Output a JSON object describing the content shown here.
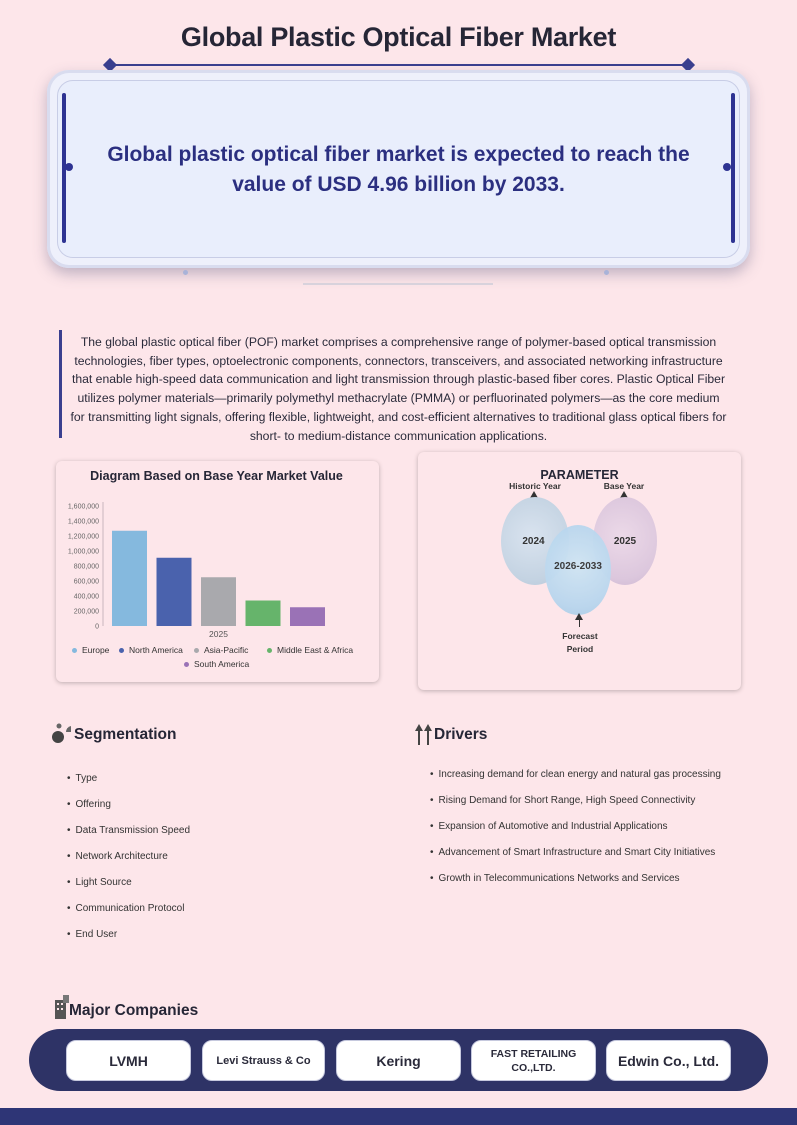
{
  "page": {
    "title": "Global Plastic Optical Fiber Market",
    "headline": "Global plastic optical fiber market is expected to reach the value of USD 4.96 billion by 2033.",
    "intro": "The global plastic optical fiber (POF) market comprises a comprehensive range of polymer-based optical transmission technologies, fiber types, optoelectronic components, connectors, transceivers, and associated networking infrastructure that enable high-speed data communication and light transmission through plastic-based fiber cores. Plastic Optical Fiber utilizes polymer materials—primarily polymethyl methacrylate (PMMA) or perfluorinated polymers—as the core medium for transmitting light signals, offering flexible, lightweight, and cost-efficient alternatives to traditional glass optical fibers for short- to medium-distance communication applications."
  },
  "chart_data": {
    "type": "bar",
    "title": "Diagram Based on Base Year Market Value",
    "categories": [
      "2025"
    ],
    "series": [
      {
        "name": "Europe",
        "values": [
          1270000
        ],
        "color": "#85b9de"
      },
      {
        "name": "North America",
        "values": [
          910000
        ],
        "color": "#4a62ad"
      },
      {
        "name": "Asia-Pacific",
        "values": [
          650000
        ],
        "color": "#a9a9ad"
      },
      {
        "name": "Middle East & Africa",
        "values": [
          340000
        ],
        "color": "#66b46b"
      },
      {
        "name": "South America",
        "values": [
          250000
        ],
        "color": "#9a72b6"
      }
    ],
    "ylim": [
      0,
      1600000
    ],
    "yticks": [
      "0",
      "200,000",
      "400,000",
      "600,000",
      "800,000",
      "1,000,000",
      "1,200,000",
      "1,400,000",
      "1,600,000"
    ],
    "xlabel": "",
    "ylabel": "",
    "grid": false,
    "legend_position": "bottom"
  },
  "parameter": {
    "title": "PARAMETER",
    "historic_label": "Historic Year",
    "base_label": "Base Year",
    "forecast_label_line1": "Forecast",
    "forecast_label_line2": "Period",
    "historic_value": "2024",
    "base_value": "2025",
    "forecast_value": "2026-2033"
  },
  "segmentation": {
    "title": "Segmentation",
    "items": [
      "Type",
      "Offering",
      "Data Transmission Speed",
      "Network Architecture",
      "Light Source",
      "Communication Protocol",
      "End User"
    ]
  },
  "drivers": {
    "title": "Drivers",
    "items": [
      "Increasing demand for clean energy and natural gas processing",
      "Rising Demand for Short Range, High Speed Connectivity",
      "Expansion of Automotive and Industrial Applications",
      "Advancement of Smart Infrastructure and Smart City Initiatives",
      "Growth in Telecommunications Networks and Services"
    ]
  },
  "companies": {
    "title": "Major Companies",
    "items": [
      "LVMH",
      "Levi Strauss & Co",
      "Kering",
      "FAST RETAILING CO.,LTD.",
      "Edwin Co., Ltd."
    ]
  }
}
